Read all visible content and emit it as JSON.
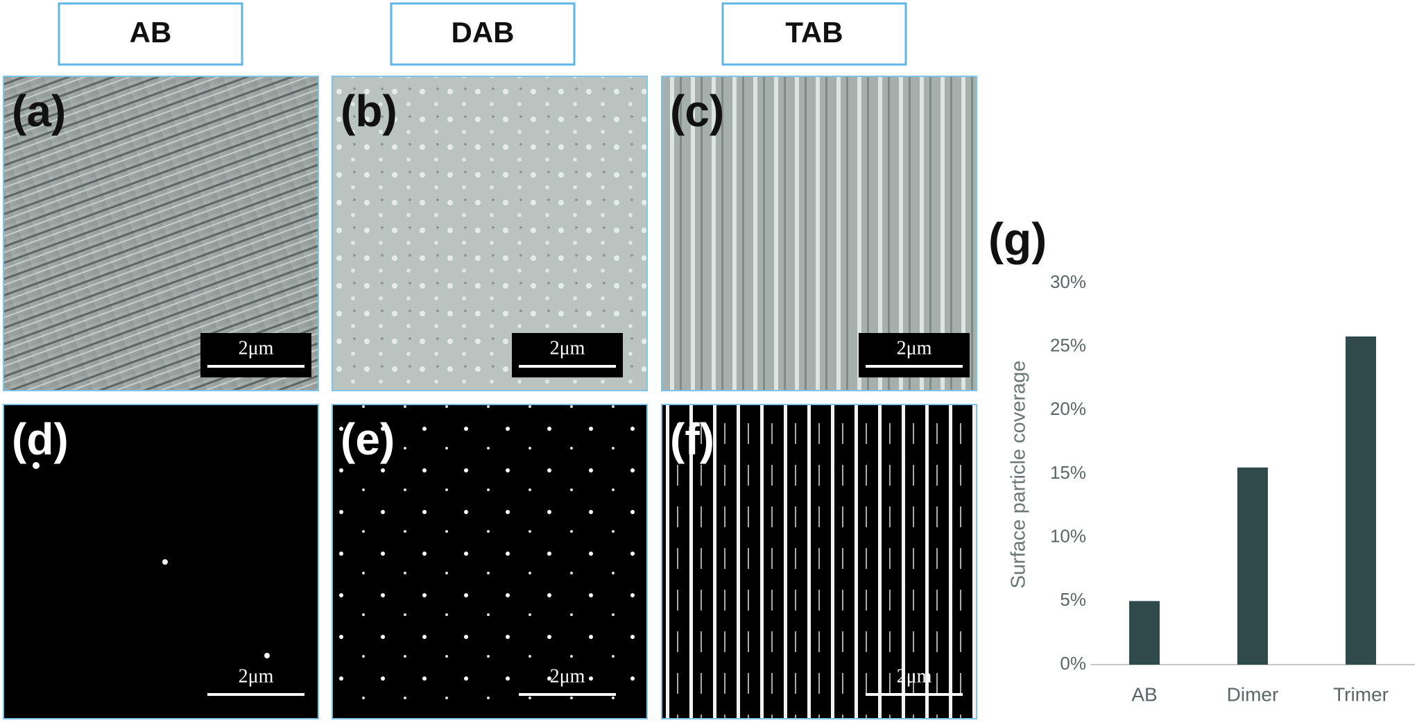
{
  "header": {
    "columns": [
      "AB",
      "DAB",
      "TAB"
    ]
  },
  "panels": [
    {
      "label": "(a)",
      "scale_bar": "2μm"
    },
    {
      "label": "(b)",
      "scale_bar": "2μm"
    },
    {
      "label": "(c)",
      "scale_bar": "2μm"
    },
    {
      "label": "(d)",
      "scale_bar": "2μm"
    },
    {
      "label": "(e)",
      "scale_bar": "2μm"
    },
    {
      "label": "(f)",
      "scale_bar": "2μm"
    }
  ],
  "chart_data": {
    "type": "bar",
    "label": "(g)",
    "y_label": "Surface particle coverage",
    "categories": [
      "AB",
      "Dimer",
      "Trimer"
    ],
    "values": [
      5,
      15.5,
      25.8
    ],
    "color": "#2f4a4a",
    "ylim": [
      0,
      30
    ],
    "yticks": [
      {
        "value": 0,
        "label": "0%"
      },
      {
        "value": 5,
        "label": "5%"
      },
      {
        "value": 10,
        "label": "10%"
      },
      {
        "value": 15,
        "label": "15%"
      },
      {
        "value": 20,
        "label": "20%"
      },
      {
        "value": 25,
        "label": "25%"
      },
      {
        "value": 30,
        "label": "30%"
      }
    ],
    "grid": false
  }
}
